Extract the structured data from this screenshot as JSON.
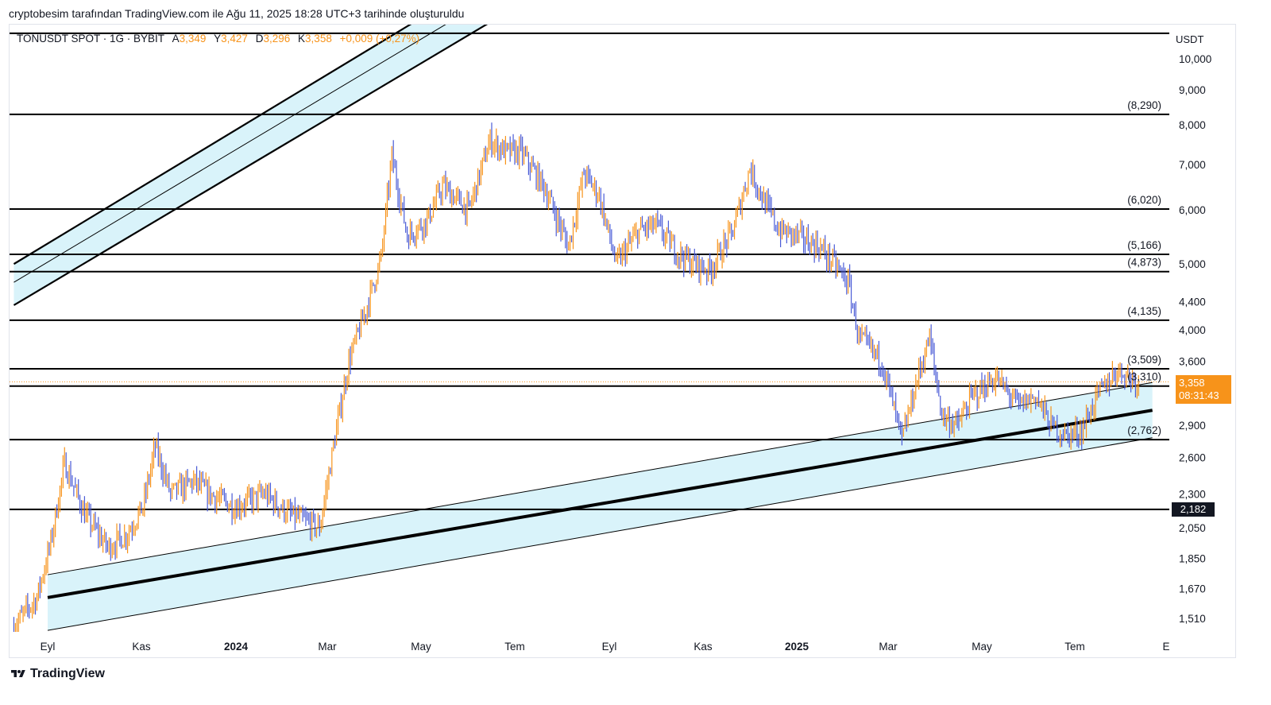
{
  "attribution": "cryptobesim tarafından TradingView.com ile Ağu 11, 2025 18:28 UTC+3 tarihinde oluşturuldu",
  "legend": {
    "symbol": "TONUSDT SPOT · 1G · BYBIT",
    "o_label": "A",
    "o": "3,349",
    "h_label": "Y",
    "h": "3,427",
    "l_label": "D",
    "l": "3,296",
    "c_label": "K",
    "c": "3,358",
    "change": "+0,009 (+0,27%)"
  },
  "axis_unit": "USDT",
  "price_tag": {
    "price": "3,358",
    "countdown": "08:31:43"
  },
  "level_tag": "2,182",
  "brand": "TradingView",
  "colors": {
    "up": "#f7931a",
    "down": "#4a5bd6",
    "channel_fill": "#d9f3fa",
    "line": "#000000"
  },
  "chart_data": {
    "type": "candlestick",
    "y_scale": "log",
    "y_ticks": [
      "10,000",
      "9,000",
      "8,000",
      "7,000",
      "6,000",
      "5,000",
      "4,400",
      "4,000",
      "3,600",
      "2,900",
      "2,600",
      "2,300",
      "2,050",
      "1,850",
      "1,670",
      "1,510"
    ],
    "x_ticks": [
      "Eyl",
      "Kas",
      "2024",
      "Mar",
      "May",
      "Tem",
      "Eyl",
      "Kas",
      "2025",
      "Mar",
      "May",
      "Tem",
      "E"
    ],
    "x_tick_bold": [
      false,
      false,
      true,
      false,
      false,
      false,
      false,
      false,
      true,
      false,
      false,
      false,
      false
    ],
    "horizontal_levels": [
      {
        "value": 10.9,
        "label": ""
      },
      {
        "value": 8.29,
        "label": "(8,290)"
      },
      {
        "value": 6.02,
        "label": "(6,020)"
      },
      {
        "value": 5.166,
        "label": "(5,166)"
      },
      {
        "value": 4.873,
        "label": "(4,873)"
      },
      {
        "value": 4.135,
        "label": "(4,135)"
      },
      {
        "value": 3.509,
        "label": "(3,509)"
      },
      {
        "value": 3.31,
        "label": "(3,310)"
      },
      {
        "value": 2.762,
        "label": "(2,762)"
      },
      {
        "value": 2.182,
        "label": ""
      }
    ],
    "price_path": [
      [
        "2023-08-10",
        1.47
      ],
      [
        "2023-08-25",
        1.62
      ],
      [
        "2023-09-03",
        1.95
      ],
      [
        "2023-09-12",
        2.55
      ],
      [
        "2023-09-25",
        2.15
      ],
      [
        "2023-10-10",
        1.92
      ],
      [
        "2023-10-22",
        2.0
      ],
      [
        "2023-11-02",
        2.2
      ],
      [
        "2023-11-10",
        2.7
      ],
      [
        "2023-11-20",
        2.3
      ],
      [
        "2023-12-05",
        2.4
      ],
      [
        "2023-12-15",
        2.3
      ],
      [
        "2024-01-01",
        2.2
      ],
      [
        "2024-01-20",
        2.3
      ],
      [
        "2024-02-05",
        2.15
      ],
      [
        "2024-02-25",
        2.05
      ],
      [
        "2024-03-05",
        2.7
      ],
      [
        "2024-03-15",
        3.6
      ],
      [
        "2024-03-25",
        4.2
      ],
      [
        "2024-04-05",
        5.1
      ],
      [
        "2024-04-12",
        7.2
      ],
      [
        "2024-04-22",
        5.5
      ],
      [
        "2024-05-05",
        5.8
      ],
      [
        "2024-05-15",
        6.5
      ],
      [
        "2024-06-01",
        6.0
      ],
      [
        "2024-06-15",
        7.6
      ],
      [
        "2024-06-25",
        7.3
      ],
      [
        "2024-07-05",
        7.3
      ],
      [
        "2024-07-20",
        6.5
      ],
      [
        "2024-08-05",
        5.3
      ],
      [
        "2024-08-15",
        6.8
      ],
      [
        "2024-08-25",
        6.3
      ],
      [
        "2024-09-05",
        5.0
      ],
      [
        "2024-09-20",
        5.6
      ],
      [
        "2024-10-01",
        5.7
      ],
      [
        "2024-10-15",
        5.2
      ],
      [
        "2024-10-25",
        5.0
      ],
      [
        "2024-11-05",
        4.9
      ],
      [
        "2024-11-20",
        5.6
      ],
      [
        "2024-12-01",
        6.9
      ],
      [
        "2024-12-10",
        6.2
      ],
      [
        "2024-12-20",
        5.6
      ],
      [
        "2025-01-01",
        5.5
      ],
      [
        "2025-01-15",
        5.3
      ],
      [
        "2025-01-25",
        5.0
      ],
      [
        "2025-02-03",
        4.7
      ],
      [
        "2025-02-10",
        3.9
      ],
      [
        "2025-02-25",
        3.6
      ],
      [
        "2025-03-10",
        2.75
      ],
      [
        "2025-03-20",
        3.4
      ],
      [
        "2025-03-28",
        3.9
      ],
      [
        "2025-04-05",
        3.0
      ],
      [
        "2025-04-15",
        2.9
      ],
      [
        "2025-04-25",
        3.2
      ],
      [
        "2025-05-10",
        3.4
      ],
      [
        "2025-05-25",
        3.1
      ],
      [
        "2025-06-05",
        3.2
      ],
      [
        "2025-06-15",
        2.9
      ],
      [
        "2025-06-25",
        2.8
      ],
      [
        "2025-07-05",
        2.85
      ],
      [
        "2025-07-15",
        3.2
      ],
      [
        "2025-07-28",
        3.5
      ],
      [
        "2025-08-11",
        3.358
      ]
    ],
    "channels": [
      {
        "name": "",
        "upper": [
          [
            "2023-08-10",
            5.0
          ],
          [
            "2024-10-25",
            20.0
          ]
        ],
        "lower": [
          [
            "2023-08-10",
            4.35
          ],
          [
            "2024-10-25",
            17.0
          ]
        ],
        "mid": [
          [
            "2023-08-10",
            4.7
          ],
          [
            "2024-10-25",
            18.5
          ]
        ]
      },
      {
        "name": "",
        "upper": [
          [
            "2023-09-01",
            1.75
          ],
          [
            "2025-08-20",
            3.35
          ]
        ],
        "lower": [
          [
            "2023-09-01",
            1.45
          ],
          [
            "2025-08-20",
            2.78
          ]
        ],
        "mid": [
          [
            "2023-09-01",
            1.62
          ],
          [
            "2025-08-20",
            3.05
          ]
        ]
      }
    ]
  }
}
